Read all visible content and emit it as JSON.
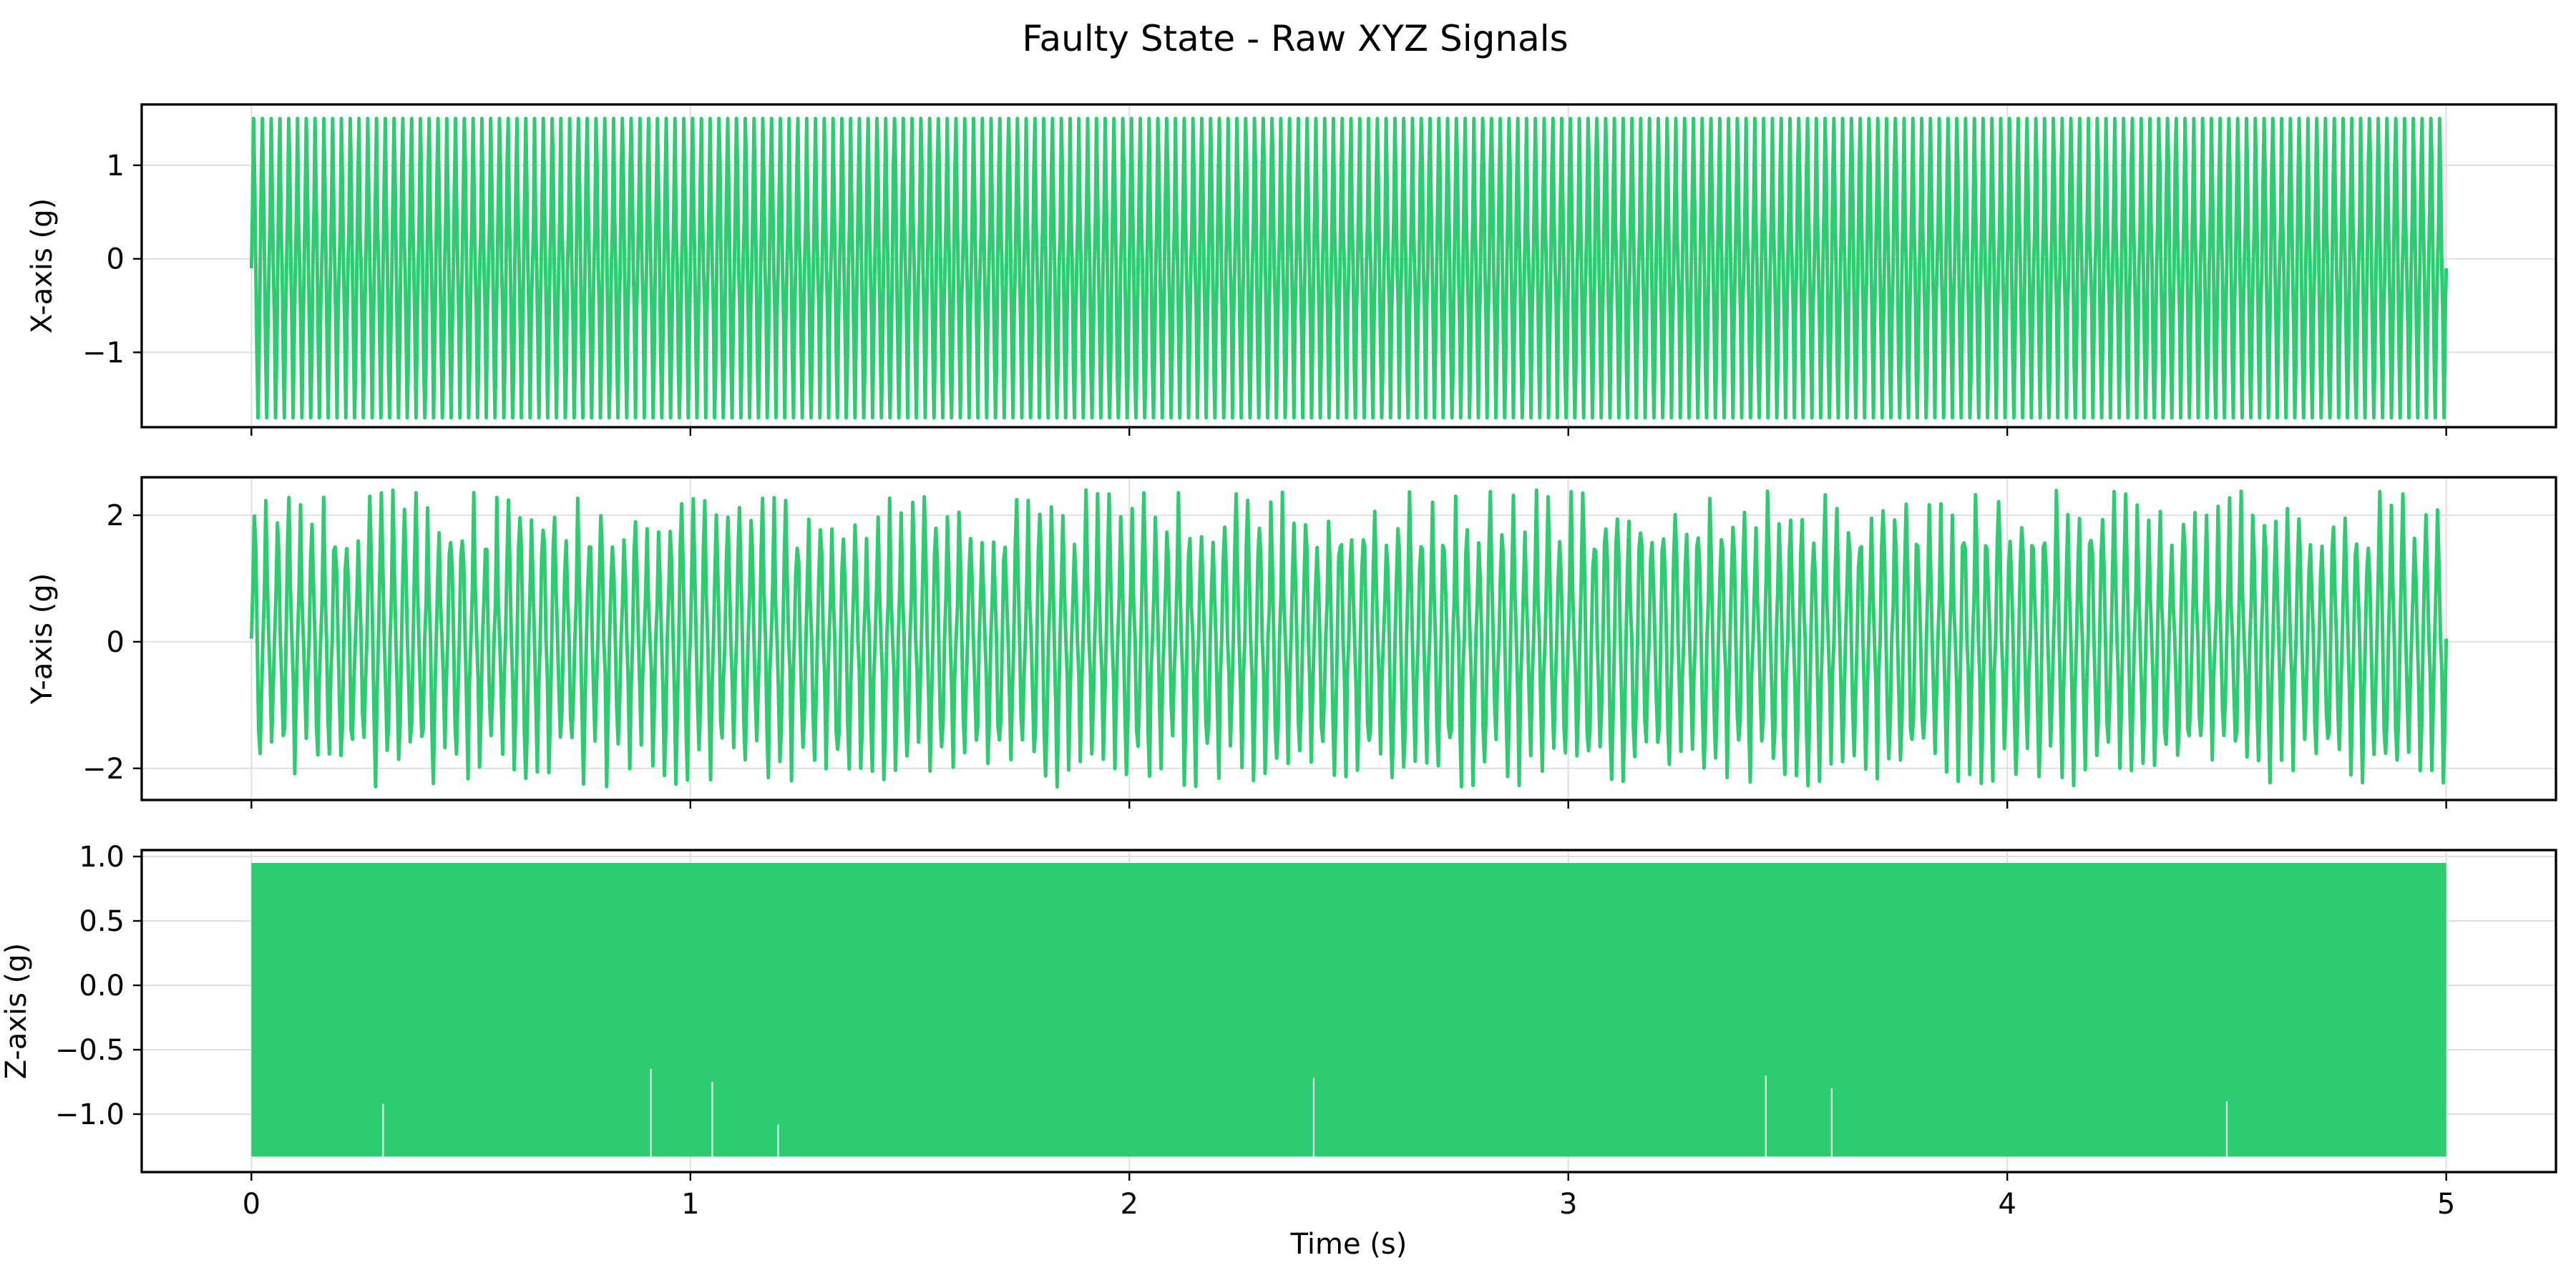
{
  "figure_title": "Faulty State - Raw XYZ Signals",
  "colors": {
    "signal": "#2ecc71",
    "grid": "#e0e0e0",
    "frame": "#000000"
  },
  "chart_data": [
    {
      "type": "line",
      "title": "",
      "xlabel": "",
      "ylabel": "X-axis (g)",
      "xlim": [
        -0.25,
        5.25
      ],
      "ylim": [
        -1.8,
        1.65
      ],
      "x_ticks": [
        0,
        1,
        2,
        3,
        4,
        5
      ],
      "y_ticks": [
        -1,
        0,
        1
      ],
      "y_tick_labels": [
        "−1",
        "0",
        "1"
      ],
      "grid": true,
      "series": [
        {
          "x_range": [
            0,
            5
          ],
          "y_range": [
            -1.7,
            1.5
          ],
          "cycles": 250,
          "description_values": {
            "max": 1.5,
            "min": -1.7
          }
        }
      ]
    },
    {
      "type": "line",
      "title": "",
      "xlabel": "",
      "ylabel": "Y-axis (g)",
      "xlim": [
        -0.25,
        5.25
      ],
      "ylim": [
        -2.5,
        2.6
      ],
      "x_ticks": [
        0,
        1,
        2,
        3,
        4,
        5
      ],
      "y_ticks": [
        -2,
        0,
        2
      ],
      "y_tick_labels": [
        "−2",
        "0",
        "2"
      ],
      "grid": true,
      "series": [
        {
          "x_range": [
            0,
            5
          ],
          "y_range": [
            -2.3,
            2.4
          ],
          "cycles": 190,
          "description_values": {
            "max": 2.4,
            "min": -2.3
          }
        }
      ]
    },
    {
      "type": "line",
      "title": "",
      "xlabel": "Time (s)",
      "ylabel": "Z-axis (g)",
      "xlim": [
        -0.25,
        5.25
      ],
      "ylim": [
        -1.45,
        1.05
      ],
      "x_ticks": [
        0,
        1,
        2,
        3,
        4,
        5
      ],
      "x_tick_labels": [
        "0",
        "1",
        "2",
        "3",
        "4",
        "5"
      ],
      "y_ticks": [
        -1.0,
        -0.5,
        0.0,
        0.5,
        1.0
      ],
      "y_tick_labels": [
        "−1.0",
        "−0.5",
        "0.0",
        "0.5",
        "1.0"
      ],
      "grid": true,
      "series": [
        {
          "x_range": [
            0,
            5
          ],
          "y_range": [
            -1.33,
            0.95
          ],
          "cycles": 2500,
          "description_values": {
            "max": 0.95,
            "min": -1.33
          },
          "spikes": [
            {
              "x": 0.3,
              "y_top": -0.92
            },
            {
              "x": 0.91,
              "y_top": -0.65
            },
            {
              "x": 1.05,
              "y_top": -0.75
            },
            {
              "x": 1.2,
              "y_top": -1.08
            },
            {
              "x": 2.42,
              "y_top": -0.72
            },
            {
              "x": 3.45,
              "y_top": -0.7
            },
            {
              "x": 3.6,
              "y_top": -0.8
            },
            {
              "x": 4.5,
              "y_top": -0.9
            }
          ]
        }
      ]
    }
  ]
}
